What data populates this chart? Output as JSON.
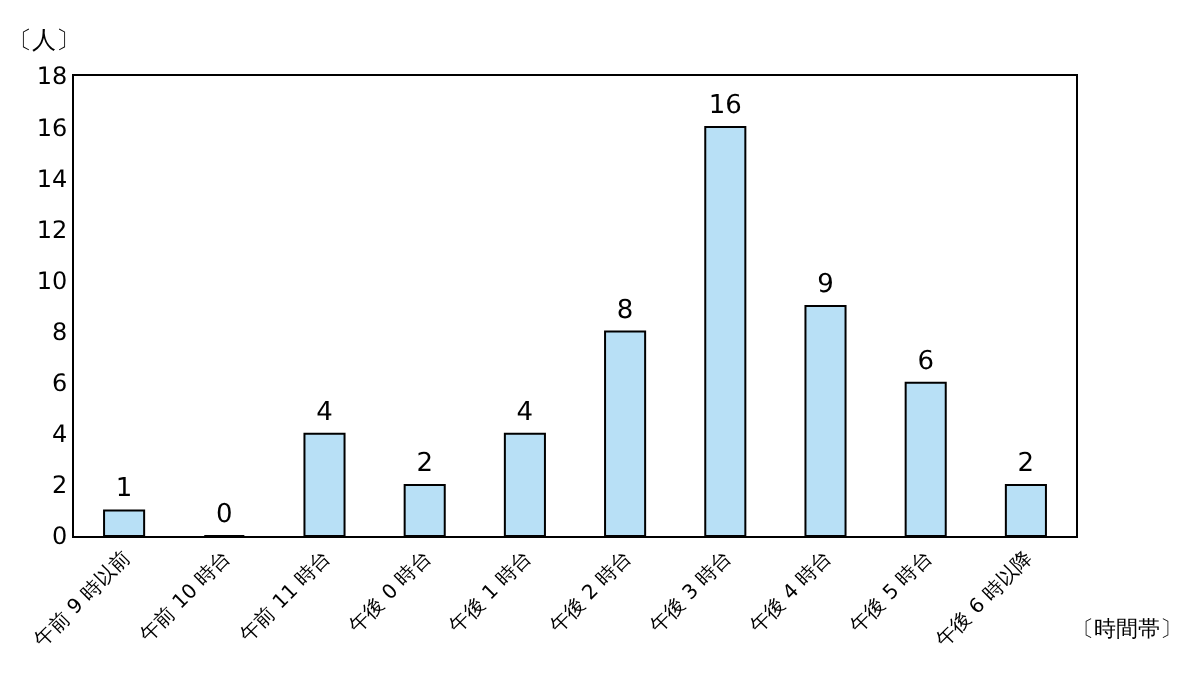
{
  "chart_data": {
    "type": "bar",
    "xlabel": "〔時間帯〕",
    "ylabel": "〔人〕",
    "categories": [
      "午前 9 時以前",
      "午前 10 時台",
      "午前 11 時台",
      "午後 0 時台",
      "午後 1 時台",
      "午後 2 時台",
      "午後 3 時台",
      "午後 4 時台",
      "午後 5 時台",
      "午後 6 時以降"
    ],
    "values": [
      1,
      0,
      4,
      2,
      4,
      8,
      16,
      9,
      6,
      2
    ],
    "color": "#b8e0f6",
    "ylim": [
      0,
      18
    ],
    "yticks": [
      0,
      2,
      4,
      6,
      8,
      10,
      12,
      14,
      16,
      18
    ],
    "data_labels": true,
    "grid": false,
    "legend": false
  }
}
